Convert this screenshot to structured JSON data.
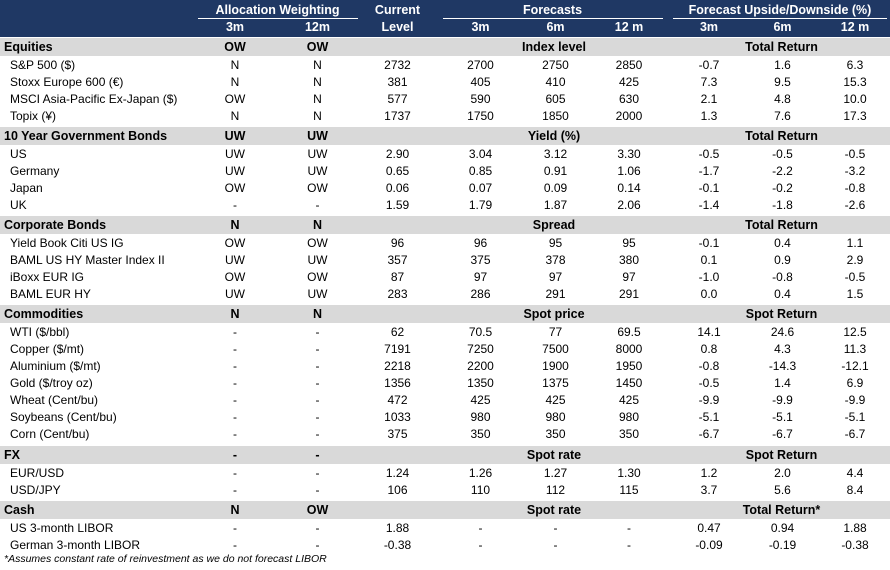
{
  "header": {
    "alloc_title": "Allocation Weighting",
    "current_title": "Current",
    "forecasts_title": "Forecasts",
    "upside_title": "Forecast Upside/Downside (%)",
    "alloc_3m": "3m",
    "alloc_12m": "12m",
    "current_sub": "Level",
    "fc_3m": "3m",
    "fc_6m": "6m",
    "fc_12m": "12 m",
    "up_3m": "3m",
    "up_6m": "6m",
    "up_12m": "12 m"
  },
  "sections": [
    {
      "name": "Equities",
      "w3": "OW",
      "w12": "OW",
      "mid": "Index level",
      "right": "Total Return",
      "rows": [
        [
          "S&P 500 ($)",
          "N",
          "N",
          "2732",
          "2700",
          "2750",
          "2850",
          "-0.7",
          "1.6",
          "6.3"
        ],
        [
          "Stoxx Europe 600 (€)",
          "N",
          "N",
          "381",
          "405",
          "410",
          "425",
          "7.3",
          "9.5",
          "15.3"
        ],
        [
          "MSCI Asia-Pacific Ex-Japan ($)",
          "OW",
          "N",
          "577",
          "590",
          "605",
          "630",
          "2.1",
          "4.8",
          "10.0"
        ],
        [
          "Topix (¥)",
          "N",
          "N",
          "1737",
          "1750",
          "1850",
          "2000",
          "1.3",
          "7.6",
          "17.3"
        ]
      ]
    },
    {
      "name": "10 Year Government Bonds",
      "w3": "UW",
      "w12": "UW",
      "mid": "Yield (%)",
      "right": "Total Return",
      "rows": [
        [
          "US",
          "UW",
          "UW",
          "2.90",
          "3.04",
          "3.12",
          "3.30",
          "-0.5",
          "-0.5",
          "-0.5"
        ],
        [
          "Germany",
          "UW",
          "UW",
          "0.65",
          "0.85",
          "0.91",
          "1.06",
          "-1.7",
          "-2.2",
          "-3.2"
        ],
        [
          "Japan",
          "OW",
          "OW",
          "0.06",
          "0.07",
          "0.09",
          "0.14",
          "-0.1",
          "-0.2",
          "-0.8"
        ],
        [
          "UK",
          "-",
          "-",
          "1.59",
          "1.79",
          "1.87",
          "2.06",
          "-1.4",
          "-1.8",
          "-2.6"
        ]
      ]
    },
    {
      "name": "Corporate Bonds",
      "w3": "N",
      "w12": "N",
      "mid": "Spread",
      "right": "Total Return",
      "rows": [
        [
          "Yield Book Citi US IG",
          "OW",
          "OW",
          "96",
          "96",
          "95",
          "95",
          "-0.1",
          "0.4",
          "1.1"
        ],
        [
          "BAML US HY Master Index II",
          "UW",
          "UW",
          "357",
          "375",
          "378",
          "380",
          "0.1",
          "0.9",
          "2.9"
        ],
        [
          "iBoxx EUR IG",
          "OW",
          "OW",
          "87",
          "97",
          "97",
          "97",
          "-1.0",
          "-0.8",
          "-0.5"
        ],
        [
          "BAML EUR HY",
          "UW",
          "UW",
          "283",
          "286",
          "291",
          "291",
          "0.0",
          "0.4",
          "1.5"
        ]
      ]
    },
    {
      "name": "Commodities",
      "w3": "N",
      "w12": "N",
      "mid": "Spot price",
      "right": "Spot Return",
      "rows": [
        [
          "WTI  ($/bbl)",
          "-",
          "-",
          "62",
          "70.5",
          "77",
          "69.5",
          "14.1",
          "24.6",
          "12.5"
        ],
        [
          "Copper ($/mt)",
          "-",
          "-",
          "7191",
          "7250",
          "7500",
          "8000",
          "0.8",
          "4.3",
          "11.3"
        ],
        [
          "Aluminium ($/mt)",
          "-",
          "-",
          "2218",
          "2200",
          "1900",
          "1950",
          "-0.8",
          "-14.3",
          "-12.1"
        ],
        [
          "Gold ($/troy oz)",
          "-",
          "-",
          "1356",
          "1350",
          "1375",
          "1450",
          "-0.5",
          "1.4",
          "6.9"
        ],
        [
          "Wheat (Cent/bu)",
          "-",
          "-",
          "472",
          "425",
          "425",
          "425",
          "-9.9",
          "-9.9",
          "-9.9"
        ],
        [
          "Soybeans (Cent/bu)",
          "-",
          "-",
          "1033",
          "980",
          "980",
          "980",
          "-5.1",
          "-5.1",
          "-5.1"
        ],
        [
          "Corn (Cent/bu)",
          "-",
          "-",
          "375",
          "350",
          "350",
          "350",
          "-6.7",
          "-6.7",
          "-6.7"
        ]
      ]
    },
    {
      "name": "FX",
      "w3": "-",
      "w12": "-",
      "mid": "Spot rate",
      "right": "Spot Return",
      "rows": [
        [
          "EUR/USD",
          "-",
          "-",
          "1.24",
          "1.26",
          "1.27",
          "1.30",
          "1.2",
          "2.0",
          "4.4"
        ],
        [
          "USD/JPY",
          "-",
          "-",
          "106",
          "110",
          "112",
          "115",
          "3.7",
          "5.6",
          "8.4"
        ]
      ]
    },
    {
      "name": "Cash",
      "w3": "N",
      "w12": "OW",
      "mid": "Spot rate",
      "right": "Total Return*",
      "rows": [
        [
          "US 3-month LIBOR",
          "-",
          "-",
          "1.88",
          "-",
          "-",
          "-",
          "0.47",
          "0.94",
          "1.88"
        ],
        [
          "German 3-month LIBOR",
          "-",
          "-",
          "-0.38",
          "-",
          "-",
          "-",
          "-0.09",
          "-0.19",
          "-0.38"
        ]
      ]
    }
  ],
  "footnote": "*Assumes constant rate of reinvestment as we do not forecast LIBOR"
}
